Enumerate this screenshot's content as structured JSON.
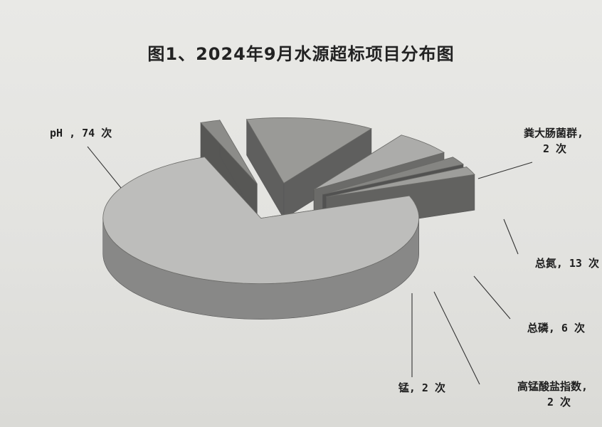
{
  "chart_data": {
    "type": "pie",
    "title": "图1、2024年9月水源超标项目分布图",
    "slices": [
      {
        "name": "pH",
        "value": 74,
        "unit": "次",
        "label_line1": "pH , 74 次",
        "label_line2": "",
        "color": "#bdbdbb"
      },
      {
        "name": "粪大肠菌群",
        "value": 2,
        "unit": "次",
        "label_line1": "粪大肠菌群,",
        "label_line2": "2 次",
        "color": "#8c8c89"
      },
      {
        "name": "总氮",
        "value": 13,
        "unit": "次",
        "label_line1": "总氮, 13 次",
        "label_line2": "",
        "color": "#9a9a97"
      },
      {
        "name": "总磷",
        "value": 6,
        "unit": "次",
        "label_line1": "总磷, 6 次",
        "label_line2": "",
        "color": "#acacaa"
      },
      {
        "name": "高锰酸盐指数",
        "value": 2,
        "unit": "次",
        "label_line1": "高锰酸盐指数,",
        "label_line2": "2 次",
        "color": "#858582"
      },
      {
        "name": "锰",
        "value": 2,
        "unit": "次",
        "label_line1": "锰, 2 次",
        "label_line2": "",
        "color": "#9e9e9b"
      }
    ],
    "style": "3d-exploded"
  }
}
